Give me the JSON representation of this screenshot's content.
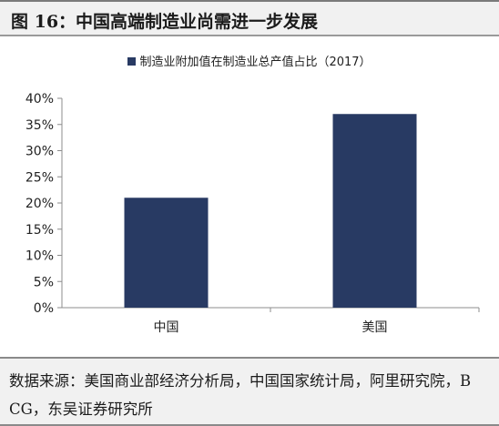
{
  "figure": {
    "title": "图 16：中国高端制造业尚需进一步发展",
    "source_note": "数据来源：美国商业部经济分析局，中国国家统计局，阿里研究院，BCG，东吴证券研究所"
  },
  "chart_data": {
    "type": "bar",
    "categories": [
      "中国",
      "美国"
    ],
    "series": [
      {
        "name": "制造业附加值在制造业总产值占比（2017）",
        "values": [
          21,
          37
        ],
        "color": "#283a63"
      }
    ],
    "yticks": [
      "0%",
      "5%",
      "10%",
      "15%",
      "20%",
      "25%",
      "30%",
      "35%",
      "40%"
    ],
    "ylim": [
      0,
      40
    ],
    "grid": false,
    "legend_position": "top-center"
  }
}
